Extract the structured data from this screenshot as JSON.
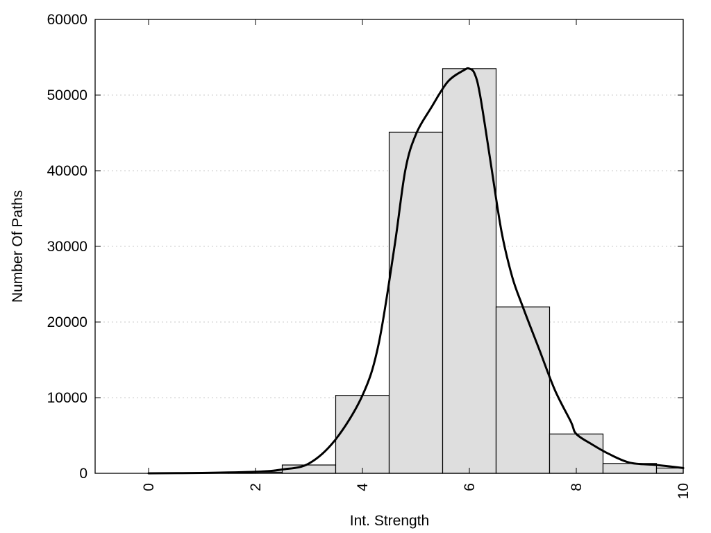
{
  "chart_data": {
    "type": "bar",
    "xlabel": "Int. Strength",
    "ylabel": "Number Of Paths",
    "xlim": [
      -1,
      10
    ],
    "ylim": [
      0,
      60000
    ],
    "x_ticks": [
      0,
      2,
      4,
      6,
      8,
      10
    ],
    "y_ticks": [
      0,
      10000,
      20000,
      30000,
      40000,
      50000,
      60000
    ],
    "grid": "horizontal dotted",
    "legend": "none",
    "bar_color": "#dedede",
    "bars": {
      "x": [
        0,
        1,
        2,
        3,
        4,
        5,
        6,
        7,
        8,
        9,
        10
      ],
      "values": [
        0,
        50,
        150,
        1100,
        10300,
        45100,
        53500,
        22000,
        5200,
        1300,
        700
      ]
    },
    "curve": {
      "x": [
        0,
        1,
        2,
        2.5,
        3,
        3.5,
        4,
        4.3,
        4.6,
        4.8,
        5,
        5.3,
        5.6,
        5.9,
        6,
        6.1,
        6.2,
        6.4,
        6.6,
        6.8,
        7,
        7.3,
        7.6,
        7.9,
        8,
        8.3,
        8.6,
        9,
        9.5,
        10
      ],
      "y": [
        0,
        50,
        200,
        500,
        1300,
        4500,
        10300,
        17000,
        30000,
        40000,
        44800,
        48500,
        51800,
        53300,
        53500,
        52800,
        50000,
        41000,
        32000,
        26000,
        22000,
        16500,
        11000,
        6800,
        5200,
        3800,
        2600,
        1400,
        1100,
        700
      ]
    }
  }
}
